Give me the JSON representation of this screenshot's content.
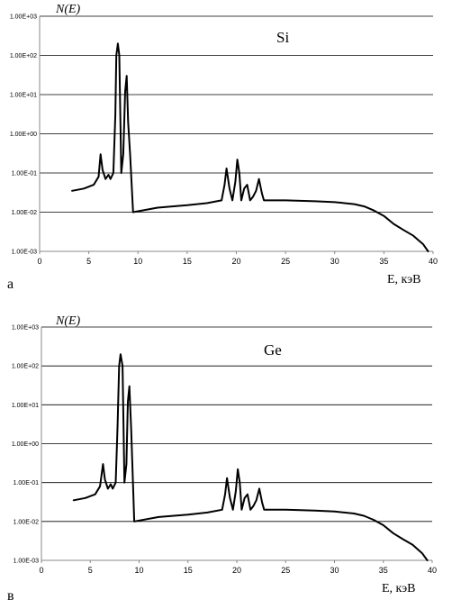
{
  "chart_data": [
    {
      "type": "line",
      "panel_letter": "а",
      "title": "Si",
      "ylabel": "N(E)",
      "xlabel": "E, кэВ",
      "xlim": [
        0,
        40
      ],
      "ylim": [
        0.001,
        1000
      ],
      "yscale": "log",
      "xticks": [
        0,
        5,
        10,
        15,
        20,
        25,
        30,
        35,
        40
      ],
      "ytick_labels": [
        "1.00E+03",
        "1.00E+02",
        "1.00E+01",
        "1.00E+00",
        "1.00E-01",
        "1.00E-02",
        "1.00E-03"
      ],
      "grid": "horizontal",
      "series": [
        {
          "x": [
            3.3,
            4.5,
            5.5,
            6.0,
            6.2,
            6.4,
            6.7,
            7.0,
            7.2,
            7.5,
            7.7,
            7.8,
            7.95,
            8.1,
            8.3,
            8.5,
            8.7,
            8.85,
            9.0,
            9.2,
            9.5,
            12,
            15,
            17,
            18.5,
            18.8,
            19.0,
            19.3,
            19.6,
            19.9,
            20.1,
            20.3,
            20.5,
            20.8,
            21.1,
            21.4,
            21.7,
            22.0,
            22.3,
            22.6,
            22.8,
            23.2,
            25,
            28,
            30,
            31,
            32,
            33,
            34,
            35,
            36,
            37,
            38,
            39,
            39.5
          ],
          "y": [
            0.035,
            0.04,
            0.05,
            0.08,
            0.3,
            0.12,
            0.07,
            0.09,
            0.07,
            0.1,
            3,
            100,
            200,
            100,
            0.1,
            0.3,
            12,
            30,
            2,
            0.3,
            0.01,
            0.013,
            0.015,
            0.017,
            0.02,
            0.05,
            0.13,
            0.04,
            0.02,
            0.06,
            0.22,
            0.1,
            0.02,
            0.04,
            0.05,
            0.02,
            0.025,
            0.035,
            0.07,
            0.03,
            0.02,
            0.02,
            0.02,
            0.019,
            0.018,
            0.017,
            0.016,
            0.014,
            0.011,
            0.008,
            0.005,
            0.0035,
            0.0025,
            0.0015,
            0.001
          ]
        }
      ]
    },
    {
      "type": "line",
      "panel_letter": "в",
      "title": "Ge",
      "ylabel": "N(E)",
      "xlabel": "E, кэВ",
      "xlim": [
        0,
        40
      ],
      "ylim": [
        0.001,
        1000
      ],
      "yscale": "log",
      "xticks": [
        0,
        5,
        10,
        15,
        20,
        25,
        30,
        35,
        40
      ],
      "ytick_labels": [
        "1.00E+03",
        "1.00E+02",
        "1.00E+01",
        "1.00E+00",
        "1.00E-01",
        "1.00E-02",
        "1.00E-03"
      ],
      "grid": "horizontal",
      "series": [
        {
          "x": [
            3.3,
            4.5,
            5.5,
            6.0,
            6.3,
            6.5,
            6.8,
            7.1,
            7.3,
            7.6,
            7.8,
            7.95,
            8.1,
            8.3,
            8.5,
            8.7,
            8.85,
            9.0,
            9.2,
            9.5,
            12,
            15,
            17,
            18.5,
            18.8,
            19.0,
            19.3,
            19.6,
            19.9,
            20.1,
            20.3,
            20.5,
            20.8,
            21.1,
            21.4,
            21.7,
            22.0,
            22.3,
            22.6,
            22.8,
            23.2,
            25,
            28,
            30,
            31,
            32,
            33,
            34,
            35,
            36,
            37,
            38,
            39,
            39.5
          ],
          "y": [
            0.035,
            0.04,
            0.05,
            0.08,
            0.3,
            0.12,
            0.07,
            0.09,
            0.07,
            0.1,
            3,
            100,
            200,
            100,
            0.1,
            0.3,
            12,
            30,
            2,
            0.01,
            0.013,
            0.015,
            0.017,
            0.02,
            0.05,
            0.13,
            0.04,
            0.02,
            0.06,
            0.22,
            0.1,
            0.02,
            0.04,
            0.05,
            0.02,
            0.025,
            0.035,
            0.07,
            0.03,
            0.02,
            0.02,
            0.02,
            0.019,
            0.018,
            0.017,
            0.016,
            0.014,
            0.011,
            0.008,
            0.005,
            0.0035,
            0.0025,
            0.0015,
            0.001
          ]
        }
      ]
    }
  ],
  "colors": {
    "line": "#000000",
    "grid": "#000000",
    "axis": "#888888"
  }
}
